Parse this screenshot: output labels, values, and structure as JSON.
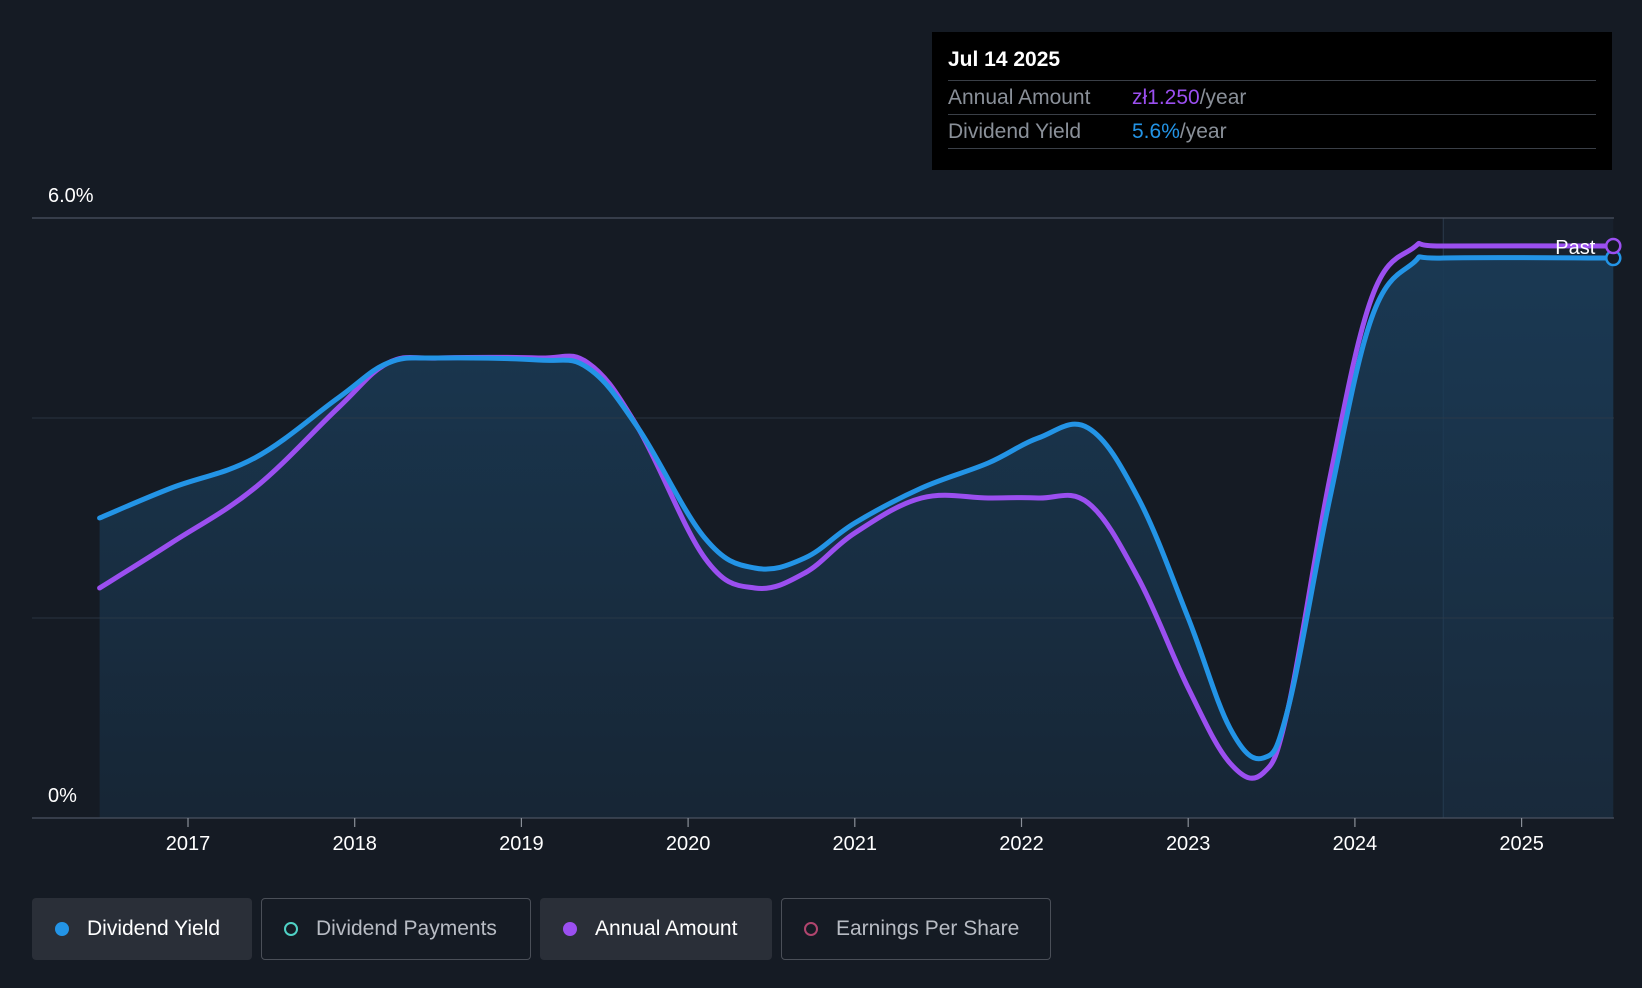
{
  "colors": {
    "background": "#151b24",
    "yield": "#2394e6",
    "annual": "#9b4ff0",
    "payments": "#4fd1c5",
    "eps": "#b0456e",
    "area": "#1a3a55"
  },
  "tooltip": {
    "date": "Jul 14 2025",
    "rows": [
      {
        "label": "Annual Amount",
        "value": "zł1.250",
        "unit": "/year"
      },
      {
        "label": "Dividend Yield",
        "value": "5.6%",
        "unit": "/year"
      }
    ]
  },
  "legend": [
    {
      "label": "Dividend Yield",
      "icon": "filled-dot",
      "active": true
    },
    {
      "label": "Dividend Payments",
      "icon": "hollow-dot",
      "active": false
    },
    {
      "label": "Annual Amount",
      "icon": "filled-dot",
      "active": true
    },
    {
      "label": "Earnings Per Share",
      "icon": "hollow-dot",
      "active": false
    }
  ],
  "chart_data": {
    "type": "line",
    "ylim": [
      0,
      6.0
    ],
    "y_tick_labels": [
      "6.0%",
      "0%"
    ],
    "x_tick_labels": [
      "2017",
      "2018",
      "2019",
      "2020",
      "2021",
      "2022",
      "2023",
      "2024",
      "2025"
    ],
    "x_range": [
      2016.47,
      2025.55
    ],
    "past_marker": {
      "label": "Past",
      "x": 2024.53
    },
    "grid": true,
    "series": [
      {
        "name": "Dividend Yield",
        "area": true,
        "points": [
          [
            2016.47,
            3.0
          ],
          [
            2016.9,
            3.3
          ],
          [
            2017.4,
            3.6
          ],
          [
            2017.9,
            4.2
          ],
          [
            2018.2,
            4.55
          ],
          [
            2018.5,
            4.6
          ],
          [
            2019.1,
            4.58
          ],
          [
            2019.4,
            4.5
          ],
          [
            2019.7,
            3.9
          ],
          [
            2020.1,
            2.8
          ],
          [
            2020.4,
            2.5
          ],
          [
            2020.7,
            2.6
          ],
          [
            2021.0,
            2.95
          ],
          [
            2021.4,
            3.3
          ],
          [
            2021.8,
            3.55
          ],
          [
            2022.1,
            3.8
          ],
          [
            2022.4,
            3.9
          ],
          [
            2022.7,
            3.2
          ],
          [
            2023.0,
            2.0
          ],
          [
            2023.25,
            0.9
          ],
          [
            2023.45,
            0.6
          ],
          [
            2023.6,
            1.1
          ],
          [
            2023.85,
            3.2
          ],
          [
            2024.1,
            5.0
          ],
          [
            2024.35,
            5.55
          ],
          [
            2024.53,
            5.6
          ],
          [
            2025.55,
            5.6
          ]
        ]
      },
      {
        "name": "Annual Amount",
        "area": false,
        "points": [
          [
            2016.47,
            2.3
          ],
          [
            2016.9,
            2.75
          ],
          [
            2017.4,
            3.3
          ],
          [
            2017.9,
            4.1
          ],
          [
            2018.2,
            4.55
          ],
          [
            2018.5,
            4.6
          ],
          [
            2019.1,
            4.6
          ],
          [
            2019.4,
            4.55
          ],
          [
            2019.7,
            3.9
          ],
          [
            2020.1,
            2.6
          ],
          [
            2020.4,
            2.3
          ],
          [
            2020.7,
            2.45
          ],
          [
            2021.0,
            2.85
          ],
          [
            2021.4,
            3.2
          ],
          [
            2021.8,
            3.2
          ],
          [
            2022.1,
            3.2
          ],
          [
            2022.4,
            3.15
          ],
          [
            2022.7,
            2.4
          ],
          [
            2023.0,
            1.3
          ],
          [
            2023.25,
            0.55
          ],
          [
            2023.45,
            0.45
          ],
          [
            2023.6,
            1.1
          ],
          [
            2023.85,
            3.4
          ],
          [
            2024.1,
            5.2
          ],
          [
            2024.35,
            5.7
          ],
          [
            2024.53,
            5.72
          ],
          [
            2025.55,
            5.72
          ]
        ]
      }
    ]
  }
}
